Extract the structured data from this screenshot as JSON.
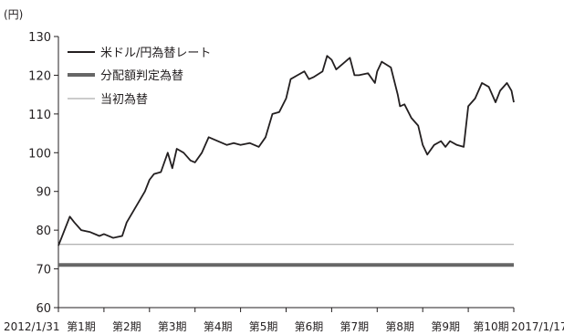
{
  "chart_data": {
    "type": "line",
    "title": "",
    "xlabel": "",
    "ylabel": "(円)",
    "ylim": [
      60,
      130
    ],
    "yticks": [
      60,
      70,
      80,
      90,
      100,
      110,
      120,
      130
    ],
    "x_start_label": "2012/1/31",
    "x_end_label": "2017/1/17",
    "categories": [
      "第1期",
      "第2期",
      "第3期",
      "第4期",
      "第5期",
      "第6期",
      "第7期",
      "第8期",
      "第9期",
      "第10期"
    ],
    "legend_position": "top-left",
    "series": [
      {
        "name": "米ドル/円為替レート",
        "color": "#231f20",
        "x": [
          0,
          0.1,
          0.25,
          0.35,
          0.5,
          0.7,
          0.9,
          1.0,
          1.2,
          1.4,
          1.5,
          1.7,
          1.9,
          2.0,
          2.1,
          2.25,
          2.4,
          2.5,
          2.6,
          2.75,
          2.9,
          3.0,
          3.15,
          3.3,
          3.5,
          3.7,
          3.85,
          4.0,
          4.2,
          4.4,
          4.55,
          4.7,
          4.85,
          5.0,
          5.1,
          5.25,
          5.4,
          5.5,
          5.6,
          5.8,
          5.9,
          6.0,
          6.1,
          6.25,
          6.4,
          6.5,
          6.6,
          6.8,
          6.95,
          7.0,
          7.1,
          7.3,
          7.45,
          7.5,
          7.6,
          7.75,
          7.9,
          8.0,
          8.1,
          8.25,
          8.4,
          8.5,
          8.6,
          8.75,
          8.9,
          9.0,
          9.15,
          9.3,
          9.45,
          9.6,
          9.7,
          9.85,
          9.95,
          10.0
        ],
        "values": [
          76,
          79,
          83.5,
          82,
          80,
          79.5,
          78.5,
          79,
          78,
          78.5,
          82,
          86,
          90,
          93,
          94.5,
          95,
          100,
          96,
          101,
          100,
          98,
          97.5,
          100,
          104,
          103,
          102,
          102.5,
          102,
          102.5,
          101.5,
          104,
          110,
          110.5,
          114,
          119,
          120,
          121,
          119,
          119.5,
          121,
          125,
          124,
          121.5,
          123,
          124.5,
          120,
          120,
          120.5,
          118,
          121,
          123.5,
          122,
          115,
          112,
          112.5,
          109,
          107,
          102,
          99.5,
          102,
          103,
          101.5,
          103,
          102,
          101.5,
          112,
          114,
          118,
          117,
          113,
          116,
          118,
          116,
          113
        ]
      },
      {
        "name": "分配額判定為替",
        "color": "#666666",
        "x": [
          0,
          10
        ],
        "values": [
          71,
          71
        ]
      },
      {
        "name": "当初為替",
        "color": "#999999",
        "x": [
          0,
          10
        ],
        "values": [
          76.3,
          76.3
        ]
      }
    ]
  }
}
